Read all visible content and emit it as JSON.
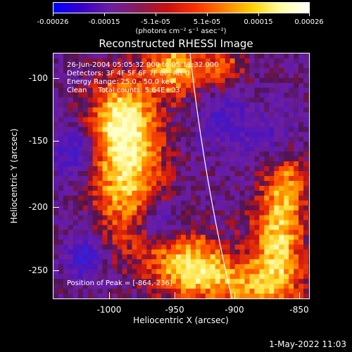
{
  "colorbar": {
    "ticks": [
      "-0.00026",
      "-0.00015",
      "-5.1e-05",
      "5.1e-05",
      "0.00015",
      "0.00026"
    ],
    "unit": "(photons cm⁻² s⁻¹ asec⁻²)",
    "colors": [
      "#0000ff",
      "#3a00c8",
      "#6a1fa0",
      "#8a1a5a",
      "#c81010",
      "#ff3000",
      "#ff8000",
      "#ffd000",
      "#ffffa0",
      "#ffffff"
    ]
  },
  "title": "Reconstructed RHESSI Image",
  "annotations": {
    "time_range": "26-Jun-2004 05:05:32.000 to 05:11:32.000",
    "detectors": "Detectors: 3F 4F 5F 6F 7F 8F, Att 0",
    "energy": "Energy Range: 25.0 - 50.0 keV",
    "method": "Clean     Total counts: 5.64E+03",
    "peak": "Position of Peak = [-864,-236]"
  },
  "axes": {
    "xlabel": "Heliocentric X (arcsec)",
    "ylabel": "Heliocentric Y (arcsec)",
    "xticks": [
      "-1000",
      "-950",
      "-900",
      "-850"
    ],
    "yticks": [
      "-100",
      "-150",
      "-200",
      "-250"
    ],
    "xlim": [
      -1045,
      -850
    ],
    "ylim": [
      -270,
      -83
    ]
  },
  "timestamp": "1-May-2022 11:03"
}
